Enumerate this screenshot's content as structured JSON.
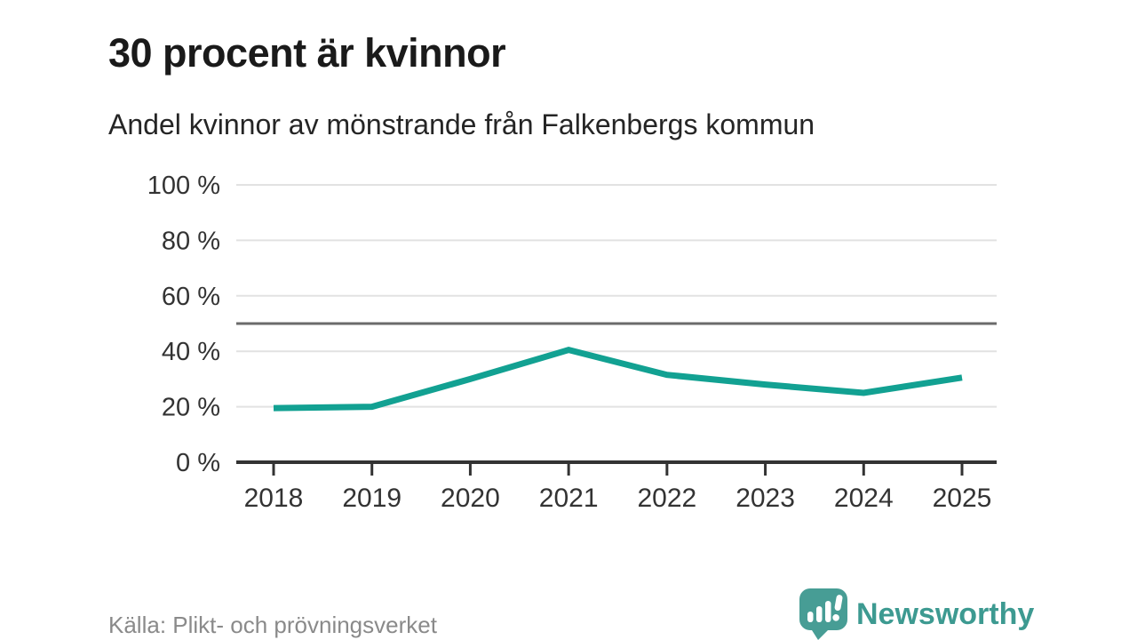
{
  "header": {
    "title": "30 procent är kvinnor",
    "subtitle": "Andel kvinnor av mönstrande från Falkenbergs kommun"
  },
  "footer": {
    "source": "Källa: Plikt- och prövningsverket",
    "branding": {
      "name": "Newsworthy",
      "icon": "newsworthy-speech-bubble-chart-icon"
    }
  },
  "colors": {
    "line": "#12a192",
    "grid": "#e2e2e2",
    "reference_line": "#6b6b6b",
    "axis": "#333333",
    "tick_text": "#333333",
    "source_text": "#8a8a8a",
    "brand": "#479d95"
  },
  "chart_data": {
    "type": "line",
    "title": "30 procent är kvinnor",
    "subtitle": "Andel kvinnor av mönstrande från Falkenbergs kommun",
    "categories": [
      "2018",
      "2019",
      "2020",
      "2021",
      "2022",
      "2023",
      "2024",
      "2025"
    ],
    "series": [
      {
        "name": "Andel kvinnor av mönstrande",
        "values": [
          19.5,
          20,
          30,
          40.5,
          31.5,
          28,
          25,
          30.5
        ]
      }
    ],
    "unit": "%",
    "xlabel": "",
    "ylabel": "",
    "ylim": [
      0,
      100
    ],
    "yticks": [
      0,
      20,
      40,
      60,
      80,
      100
    ],
    "ytick_suffix": " %",
    "reference_line": 50,
    "grid": true,
    "legend": false,
    "source": "Källa: Plikt- och prövningsverket"
  }
}
